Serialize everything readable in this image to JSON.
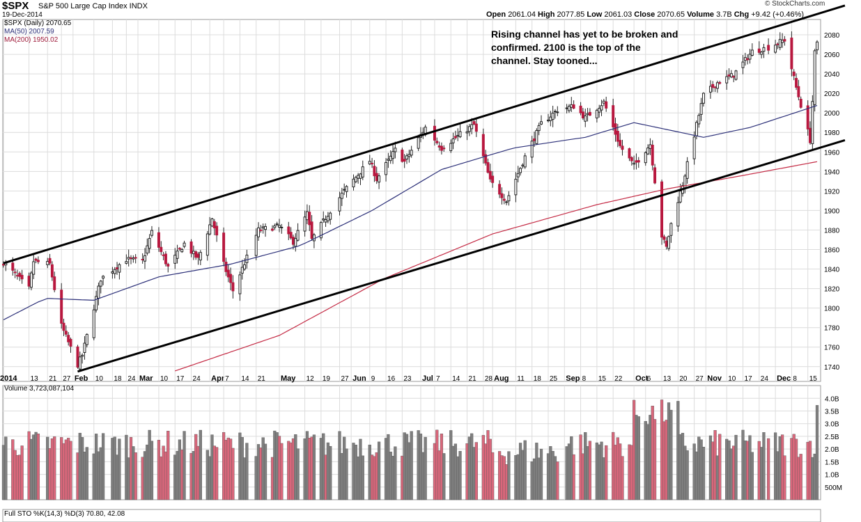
{
  "header": {
    "symbol": "$SPX",
    "description": "S&P 500 Large Cap Index INDX",
    "date": "19-Dec-2014",
    "open_label": "Open",
    "open": "2061.04",
    "high_label": "High",
    "high": "2077.85",
    "low_label": "Low",
    "low": "2061.03",
    "close_label": "Close",
    "close": "2070.65",
    "volume_label": "Volume",
    "volume": "3.7B",
    "chg_label": "Chg",
    "chg": "+9.42 (+0.46%)",
    "logo": "© StockCharts.com"
  },
  "legend": {
    "price": "$SPX (Daily) 2070.65",
    "ma50": "MA(50) 2007.59",
    "ma200": "MA(200) 1950.02"
  },
  "annotation": "Rising channel has yet to be broken and confirmed. 2100 is the top of the channel. Stay tooned...",
  "volume_panel": {
    "label": "Volume 3,723,087,104"
  },
  "sto_panel": {
    "label": "Full STO %K(14,3) %D(3) 70.80, 42.08"
  },
  "colors": {
    "up": "#555555",
    "down": "#b8183f",
    "ma50": "#2b2f78",
    "ma200": "#c42a44",
    "vol_up": "#7f7f7f",
    "vol_down": "#d9677b",
    "channel": "#000000",
    "grid": "#dcdcdc"
  },
  "chart_data": {
    "type": "line",
    "title": "$SPX S&P 500 Large Cap Index INDX",
    "y_ticks": [
      1740,
      1760,
      1780,
      1800,
      1820,
      1840,
      1860,
      1880,
      1900,
      1920,
      1940,
      1960,
      1980,
      2000,
      2020,
      2040,
      2060,
      2080
    ],
    "ylim": [
      1732,
      2090
    ],
    "x_tick_labels": [
      "2014",
      "13",
      "21",
      "27",
      "Feb",
      "10",
      "18",
      "24",
      "Mar",
      "10",
      "17",
      "24",
      "Apr",
      "7",
      "14",
      "21",
      "May",
      "12",
      "19",
      "27",
      "Jun",
      "9",
      "16",
      "23",
      "Jul",
      "7",
      "14",
      "21",
      "28",
      "Aug",
      "11",
      "18",
      "25",
      "Sep",
      "8",
      "15",
      "22",
      "Oct",
      "6",
      "13",
      "20",
      "27",
      "Nov",
      "10",
      "17",
      "24",
      "Dec",
      "8",
      "15"
    ],
    "bold_month_labels": [
      "2014",
      "Feb",
      "Mar",
      "Apr",
      "May",
      "Jun",
      "Jul",
      "Aug",
      "Sep",
      "Oct",
      "Nov",
      "Dec"
    ],
    "price_anchors": [
      [
        "2014-01-02",
        1847
      ],
      [
        "2014-01-13",
        1820
      ],
      [
        "2014-01-15",
        1848
      ],
      [
        "2014-01-22",
        1845
      ],
      [
        "2014-01-27",
        1782
      ],
      [
        "2014-02-03",
        1742
      ],
      [
        "2014-02-05",
        1752
      ],
      [
        "2014-02-13",
        1830
      ],
      [
        "2014-02-24",
        1850
      ],
      [
        "2014-03-03",
        1848
      ],
      [
        "2014-03-07",
        1878
      ],
      [
        "2014-03-14",
        1842
      ],
      [
        "2014-03-21",
        1866
      ],
      [
        "2014-03-27",
        1850
      ],
      [
        "2014-04-02",
        1892
      ],
      [
        "2014-04-07",
        1845
      ],
      [
        "2014-04-11",
        1818
      ],
      [
        "2014-04-22",
        1880
      ],
      [
        "2014-05-01",
        1884
      ],
      [
        "2014-05-07",
        1868
      ],
      [
        "2014-05-13",
        1897
      ],
      [
        "2014-05-15",
        1870
      ],
      [
        "2014-05-23",
        1900
      ],
      [
        "2014-05-29",
        1920
      ],
      [
        "2014-06-09",
        1951
      ],
      [
        "2014-06-12",
        1932
      ],
      [
        "2014-06-20",
        1962
      ],
      [
        "2014-06-24",
        1950
      ],
      [
        "2014-07-03",
        1985
      ],
      [
        "2014-07-10",
        1964
      ],
      [
        "2014-07-18",
        1978
      ],
      [
        "2014-07-24",
        1988
      ],
      [
        "2014-07-31",
        1930
      ],
      [
        "2014-08-07",
        1910
      ],
      [
        "2014-08-15",
        1955
      ],
      [
        "2014-08-22",
        1989
      ],
      [
        "2014-08-29",
        2003
      ],
      [
        "2014-09-05",
        2007
      ],
      [
        "2014-09-10",
        1995
      ],
      [
        "2014-09-18",
        2011
      ],
      [
        "2014-09-25",
        1966
      ],
      [
        "2014-10-01",
        1946
      ],
      [
        "2014-10-08",
        1968
      ],
      [
        "2014-10-13",
        1874
      ],
      [
        "2014-10-15",
        1862
      ],
      [
        "2014-10-17",
        1886
      ],
      [
        "2014-10-22",
        1927
      ],
      [
        "2014-10-31",
        2018
      ],
      [
        "2014-11-06",
        2031
      ],
      [
        "2014-11-13",
        2039
      ],
      [
        "2014-11-21",
        2063
      ],
      [
        "2014-11-28",
        2067
      ],
      [
        "2014-12-05",
        2075
      ],
      [
        "2014-12-10",
        2026
      ],
      [
        "2014-12-16",
        1972
      ],
      [
        "2014-12-17",
        2012
      ],
      [
        "2014-12-18",
        2061
      ],
      [
        "2014-12-19",
        2070.65
      ]
    ],
    "ma50_anchors": [
      [
        "2014-01-02",
        1788
      ],
      [
        "2014-01-20",
        1810
      ],
      [
        "2014-02-10",
        1808
      ],
      [
        "2014-03-10",
        1832
      ],
      [
        "2014-04-10",
        1845
      ],
      [
        "2014-05-10",
        1864
      ],
      [
        "2014-06-10",
        1900
      ],
      [
        "2014-07-10",
        1942
      ],
      [
        "2014-08-10",
        1964
      ],
      [
        "2014-09-10",
        1975
      ],
      [
        "2014-10-01",
        1990
      ],
      [
        "2014-10-31",
        1975
      ],
      [
        "2014-11-20",
        1985
      ],
      [
        "2014-12-19",
        2007.59
      ]
    ],
    "ma200_anchors": [
      [
        "2014-03-15",
        1734
      ],
      [
        "2014-05-01",
        1772
      ],
      [
        "2014-06-15",
        1830
      ],
      [
        "2014-08-01",
        1876
      ],
      [
        "2014-09-15",
        1906
      ],
      [
        "2014-10-15",
        1922
      ],
      [
        "2014-11-15",
        1935
      ],
      [
        "2014-12-19",
        1950.02
      ]
    ],
    "channel_lines": [
      {
        "from": [
          "2014-01-02",
          1846
        ],
        "to": [
          "2014-12-31",
          2110
        ]
      },
      {
        "from": [
          "2014-02-03",
          1735
        ],
        "to": [
          "2014-12-31",
          1972
        ]
      }
    ],
    "volume_ticks": [
      "4.0B",
      "3.5B",
      "3.0B",
      "2.5B",
      "2.0B",
      "1.5B",
      "1.0B",
      "500M"
    ],
    "volume_last": 3.723
  }
}
